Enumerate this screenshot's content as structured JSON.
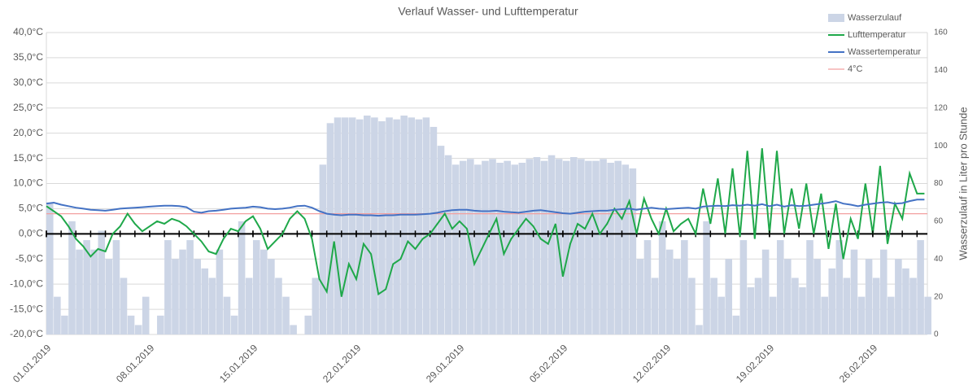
{
  "chart_data": {
    "type": "combo",
    "title": "Verlauf Wasser- und Lufttemperatur",
    "y2label": "Wasserzulauf in Liter pro Stunde",
    "legend": "top-right",
    "grid": true,
    "xminor": 1,
    "xlim": [
      0,
      59.7
    ],
    "xticks": [
      {
        "value": 0,
        "label": "01.01.2019"
      },
      {
        "value": 7,
        "label": "08.01.2019"
      },
      {
        "value": 14,
        "label": "15.01.2019"
      },
      {
        "value": 21,
        "label": "22.01.2019"
      },
      {
        "value": 28,
        "label": "29.01.2019"
      },
      {
        "value": 35,
        "label": "05.02.2019"
      },
      {
        "value": 42,
        "label": "12.02.2019"
      },
      {
        "value": 49,
        "label": "19.02.2019"
      },
      {
        "value": 56,
        "label": "26.02.2019"
      }
    ],
    "ylim": [
      -20,
      40
    ],
    "yticks": [
      {
        "value": -20,
        "label": "-20,0°C"
      },
      {
        "value": -15,
        "label": "-15,0°C"
      },
      {
        "value": -10,
        "label": "-10,0°C"
      },
      {
        "value": -5,
        "label": "-5,0°C"
      },
      {
        "value": 0,
        "label": "0,0°C"
      },
      {
        "value": 5,
        "label": "5,0°C"
      },
      {
        "value": 10,
        "label": "10,0°C"
      },
      {
        "value": 15,
        "label": "15,0°C"
      },
      {
        "value": 20,
        "label": "20,0°C"
      },
      {
        "value": 25,
        "label": "25,0°C"
      },
      {
        "value": 30,
        "label": "30,0°C"
      },
      {
        "value": 35,
        "label": "35,0°C"
      },
      {
        "value": 40,
        "label": "40,0°C"
      }
    ],
    "y2lim": [
      0,
      160
    ],
    "y2ticks": [
      0,
      20,
      40,
      60,
      80,
      100,
      120,
      140,
      160
    ],
    "x": [
      0,
      0.5,
      1,
      1.5,
      2,
      2.5,
      3,
      3.5,
      4,
      4.5,
      5,
      5.5,
      6,
      6.5,
      7,
      7.5,
      8,
      8.5,
      9,
      9.5,
      10,
      10.5,
      11,
      11.5,
      12,
      12.5,
      13,
      13.5,
      14,
      14.5,
      15,
      15.5,
      16,
      16.5,
      17,
      17.5,
      18,
      18.5,
      19,
      19.5,
      20,
      20.5,
      21,
      21.5,
      22,
      22.5,
      23,
      23.5,
      24,
      24.5,
      25,
      25.5,
      26,
      26.5,
      27,
      27.5,
      28,
      28.5,
      29,
      29.5,
      30,
      30.5,
      31,
      31.5,
      32,
      32.5,
      33,
      33.5,
      34,
      34.5,
      35,
      35.5,
      36,
      36.5,
      37,
      37.5,
      38,
      38.5,
      39,
      39.5,
      40,
      40.5,
      41,
      41.5,
      42,
      42.5,
      43,
      43.5,
      44,
      44.5,
      45,
      45.5,
      46,
      46.5,
      47,
      47.5,
      48,
      48.5,
      49,
      49.5,
      50,
      50.5,
      51,
      51.5,
      52,
      52.5,
      53,
      53.5,
      54,
      54.5,
      55,
      55.5,
      56,
      56.5,
      57,
      57.5,
      58,
      58.5,
      59,
      59.5
    ],
    "series": [
      {
        "name": "Wasserzulauf",
        "type": "bar",
        "axis": "y2",
        "color": "#ccd5e6",
        "values": [
          70,
          20,
          10,
          60,
          45,
          50,
          45,
          55,
          40,
          50,
          30,
          10,
          5,
          20,
          0,
          10,
          50,
          40,
          45,
          50,
          40,
          35,
          30,
          45,
          20,
          10,
          60,
          30,
          50,
          45,
          40,
          30,
          20,
          5,
          0,
          10,
          30,
          90,
          112,
          115,
          115,
          115,
          114,
          116,
          115,
          113,
          115,
          114,
          116,
          115,
          114,
          115,
          110,
          100,
          95,
          90,
          92,
          93,
          90,
          92,
          93,
          91,
          92,
          90,
          91,
          93,
          94,
          92,
          95,
          93,
          92,
          94,
          93,
          92,
          92,
          93,
          91,
          92,
          90,
          88,
          40,
          50,
          30,
          60,
          45,
          40,
          50,
          30,
          5,
          60,
          30,
          20,
          40,
          10,
          50,
          25,
          30,
          45,
          20,
          50,
          40,
          30,
          25,
          50,
          40,
          20,
          35,
          50,
          30,
          45,
          20,
          40,
          30,
          45,
          20,
          40,
          35,
          30,
          50,
          20
        ]
      },
      {
        "name": "Lufttemperatur",
        "type": "line",
        "color": "#1fa84a",
        "values": [
          5.5,
          4.5,
          3.5,
          1.5,
          -1,
          -2.5,
          -4.5,
          -3,
          -3.5,
          0,
          1.5,
          4,
          2,
          0.5,
          1.5,
          2.5,
          2,
          3,
          2.5,
          1.5,
          0,
          -1.5,
          -3.5,
          -4,
          -1,
          1,
          0.5,
          2.5,
          3.5,
          1,
          -3,
          -1.5,
          0,
          3,
          4.5,
          3,
          -1,
          -9,
          -11.5,
          -1.5,
          -12.5,
          -6,
          -9,
          -2,
          -4,
          -12,
          -11,
          -6,
          -5,
          -1.5,
          -3,
          -1,
          0,
          2,
          4,
          1,
          2.5,
          1,
          -6,
          -3,
          0,
          3,
          -4,
          -1,
          1,
          3,
          1.5,
          -1,
          -2,
          2,
          -8.5,
          -2,
          2,
          1,
          4,
          0,
          2,
          5,
          3,
          6.5,
          0,
          7,
          3,
          0,
          5,
          0.5,
          2,
          3,
          0,
          9,
          2,
          11,
          0,
          13,
          -0.5,
          16.5,
          -1,
          17,
          0,
          16.5,
          0,
          9,
          1,
          10,
          0,
          8,
          -3,
          6,
          -5,
          3,
          -1,
          10,
          0,
          13.5,
          -2,
          6,
          3,
          12,
          8,
          8
        ]
      },
      {
        "name": "Wassertemperatur",
        "type": "line",
        "color": "#4472c4",
        "values": [
          6,
          6.2,
          5.8,
          5.5,
          5.2,
          5,
          4.8,
          4.7,
          4.6,
          4.8,
          5,
          5.1,
          5.2,
          5.3,
          5.4,
          5.5,
          5.6,
          5.6,
          5.5,
          5.3,
          4.4,
          4.2,
          4.5,
          4.6,
          4.8,
          5,
          5.1,
          5.2,
          5.4,
          5.3,
          5,
          4.9,
          5,
          5.2,
          5.5,
          5.6,
          5.2,
          4.5,
          4,
          3.8,
          3.7,
          3.8,
          3.8,
          3.7,
          3.7,
          3.6,
          3.7,
          3.7,
          3.8,
          3.8,
          3.8,
          3.9,
          4,
          4.2,
          4.5,
          4.7,
          4.8,
          4.8,
          4.6,
          4.5,
          4.5,
          4.6,
          4.4,
          4.3,
          4.2,
          4.4,
          4.6,
          4.7,
          4.5,
          4.3,
          4.1,
          4,
          4.2,
          4.4,
          4.5,
          4.6,
          4.6,
          4.8,
          4.9,
          5,
          4.8,
          5,
          5.2,
          5,
          4.9,
          5,
          5.1,
          5.2,
          5,
          5.4,
          5.5,
          5.6,
          5.5,
          5.7,
          5.6,
          5.8,
          5.6,
          5.9,
          5.5,
          5.8,
          5.4,
          5.7,
          5.5,
          5.6,
          5.8,
          6,
          6.2,
          6.5,
          6,
          5.8,
          5.5,
          5.8,
          6,
          6.2,
          6.3,
          6,
          6.1,
          6.5,
          6.8,
          6.8
        ]
      },
      {
        "name": "4°C",
        "type": "hline",
        "color": "#f2a0a0",
        "value": 4
      }
    ]
  }
}
